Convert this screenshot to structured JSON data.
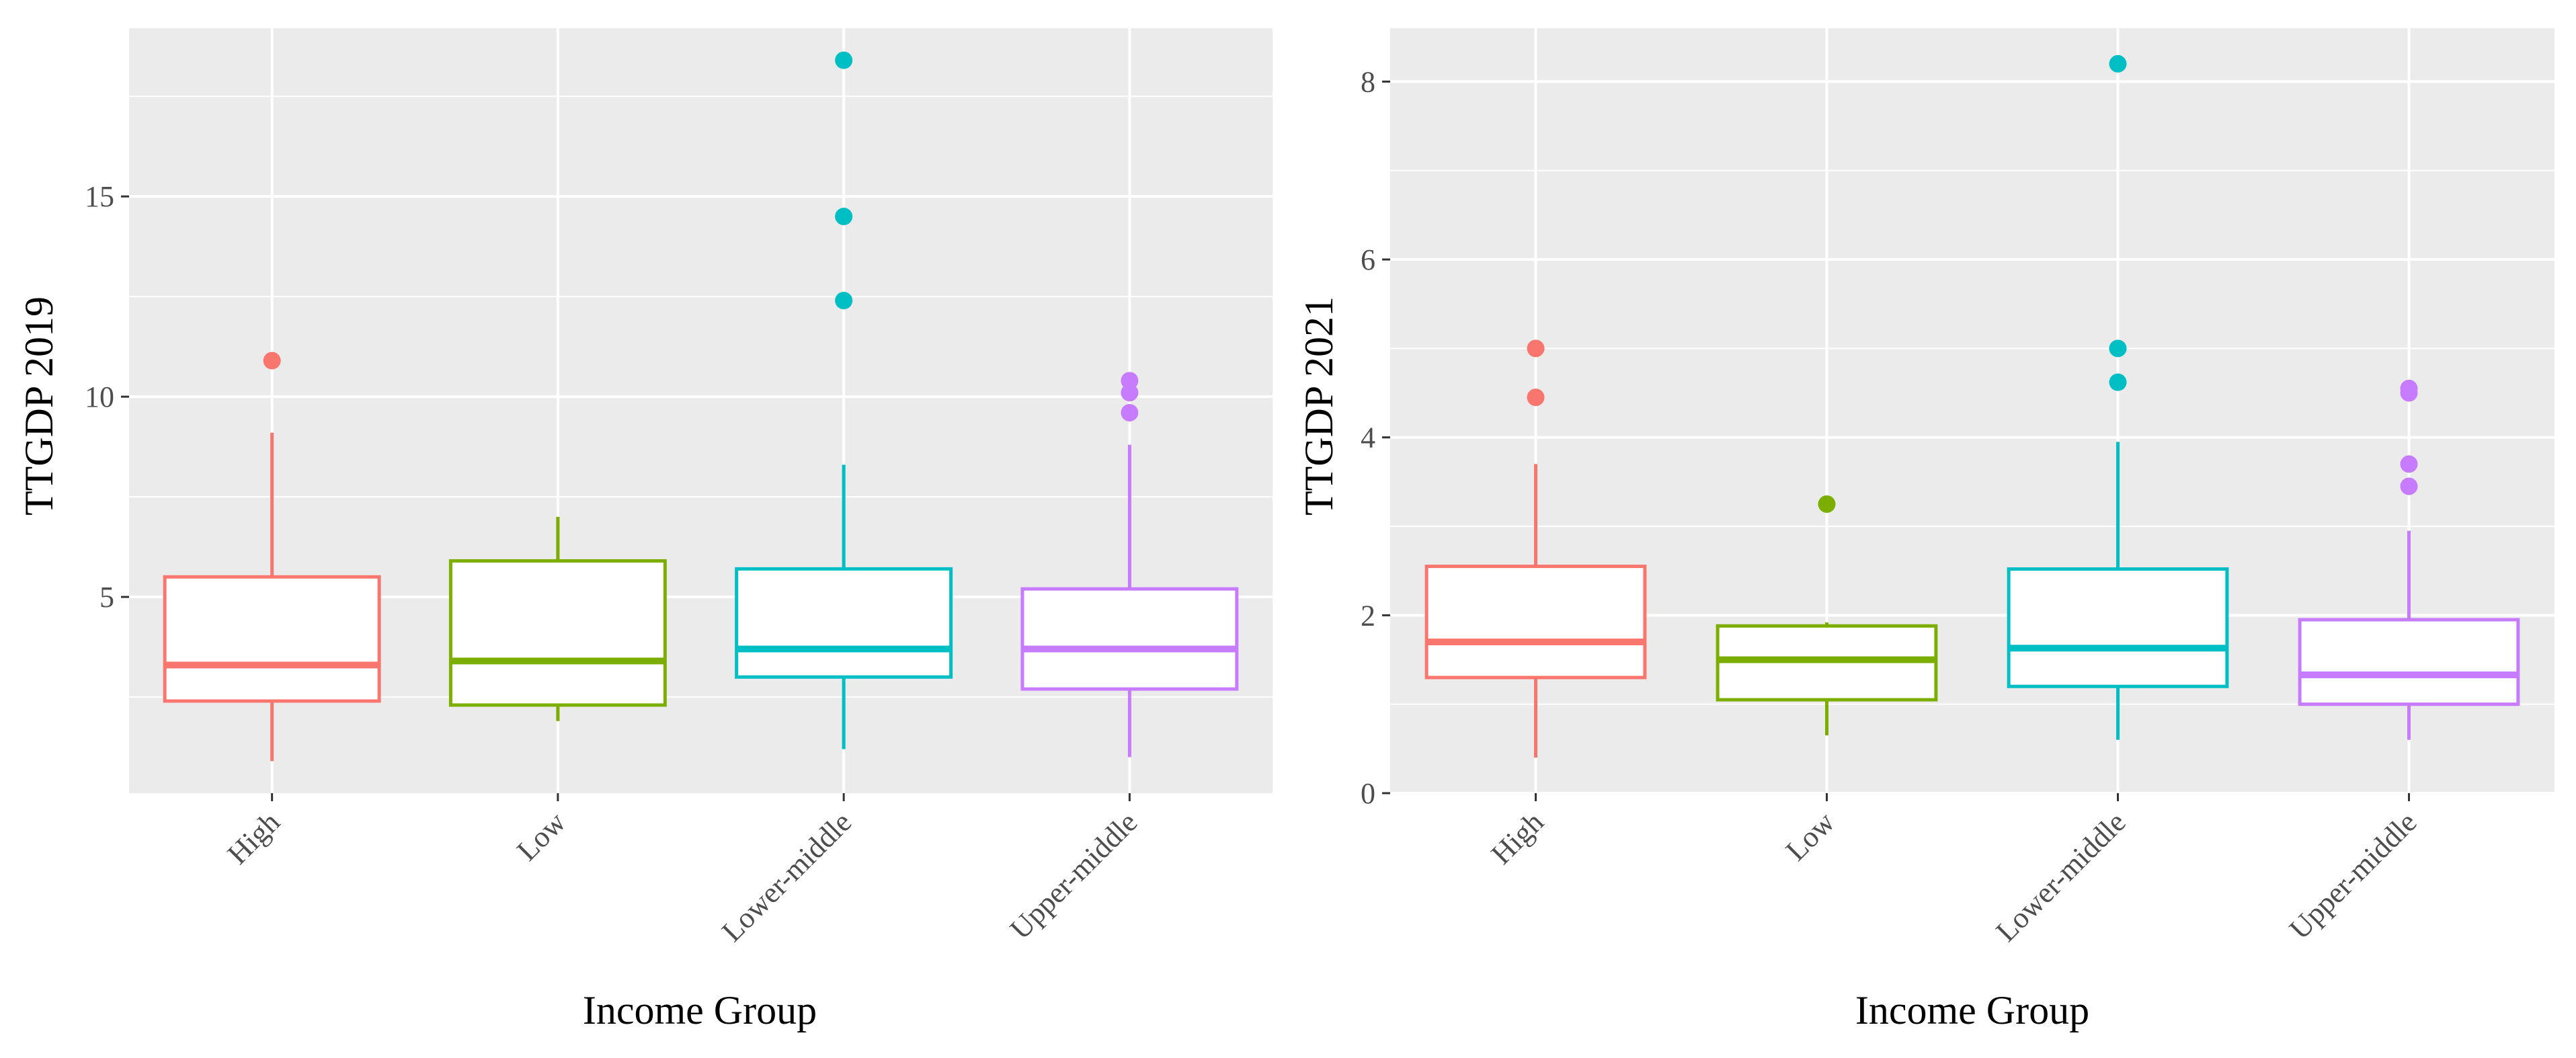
{
  "chart_data": [
    {
      "type": "box",
      "xlabel": "Income Group",
      "ylabel": "TTGDP 2019",
      "categories": [
        "High",
        "Low",
        "Lower-middle",
        "Upper-middle"
      ],
      "ylim": [
        0.1,
        19.2
      ],
      "yticks": [
        5,
        10,
        15
      ],
      "ytick_labels": [
        "5",
        "10",
        "15"
      ],
      "grid": true,
      "background": "#ebebeb",
      "grid_color": "#ffffff",
      "series": [
        {
          "category": "High",
          "color": "#f8766d",
          "whisker_low": 0.9,
          "q1": 2.4,
          "median": 3.3,
          "q3": 5.5,
          "whisker_high": 9.1,
          "outliers": [
            10.9
          ]
        },
        {
          "category": "Low",
          "color": "#7cae00",
          "whisker_low": 1.9,
          "q1": 2.3,
          "median": 3.4,
          "q3": 5.9,
          "whisker_high": 7.0,
          "outliers": []
        },
        {
          "category": "Lower-middle",
          "color": "#00bfc4",
          "whisker_low": 1.2,
          "q1": 3.0,
          "median": 3.7,
          "q3": 5.7,
          "whisker_high": 8.3,
          "outliers": [
            12.4,
            14.5,
            18.4
          ]
        },
        {
          "category": "Upper-middle",
          "color": "#c77cff",
          "whisker_low": 1.0,
          "q1": 2.7,
          "median": 3.7,
          "q3": 5.2,
          "whisker_high": 8.8,
          "outliers": [
            9.6,
            10.1,
            10.4
          ]
        }
      ]
    },
    {
      "type": "box",
      "xlabel": "Income Group",
      "ylabel": "TTGDP 2021",
      "categories": [
        "High",
        "Low",
        "Lower-middle",
        "Upper-middle"
      ],
      "ylim": [
        0,
        8.6
      ],
      "yticks": [
        0,
        2,
        4,
        6,
        8
      ],
      "ytick_labels": [
        "0",
        "2",
        "4",
        "6",
        "8"
      ],
      "grid": true,
      "background": "#ebebeb",
      "grid_color": "#ffffff",
      "series": [
        {
          "category": "High",
          "color": "#f8766d",
          "whisker_low": 0.4,
          "q1": 1.3,
          "median": 1.7,
          "q3": 2.55,
          "whisker_high": 3.7,
          "outliers": [
            4.45,
            5.0
          ]
        },
        {
          "category": "Low",
          "color": "#7cae00",
          "whisker_low": 0.65,
          "q1": 1.05,
          "median": 1.5,
          "q3": 1.88,
          "whisker_high": 1.92,
          "outliers": [
            3.25
          ]
        },
        {
          "category": "Lower-middle",
          "color": "#00bfc4",
          "whisker_low": 0.6,
          "q1": 1.2,
          "median": 1.63,
          "q3": 2.52,
          "whisker_high": 3.95,
          "outliers": [
            4.62,
            5.0,
            8.2
          ]
        },
        {
          "category": "Upper-middle",
          "color": "#c77cff",
          "whisker_low": 0.6,
          "q1": 1.0,
          "median": 1.33,
          "q3": 1.95,
          "whisker_high": 2.95,
          "outliers": [
            3.45,
            3.7,
            4.5,
            4.55
          ]
        }
      ]
    }
  ]
}
